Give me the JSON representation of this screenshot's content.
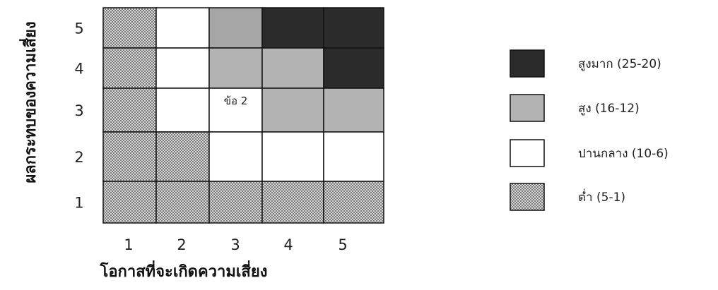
{
  "chart_data": {
    "type": "heatmap",
    "title": "",
    "xlabel": "โอกาสที่จะเกิดความเสี่ยง",
    "ylabel": "ผลกระทบของความเสี่ยง",
    "x": [
      1,
      2,
      3,
      4,
      5
    ],
    "y": [
      1,
      2,
      3,
      4,
      5
    ],
    "x_tick_labels": [
      "1",
      "2",
      "3",
      "4",
      "5"
    ],
    "y_tick_labels": [
      "1",
      "2",
      "3",
      "4",
      "5"
    ],
    "cells": [
      {
        "x": 1,
        "y": 5,
        "level": "low"
      },
      {
        "x": 2,
        "y": 5,
        "level": "medium"
      },
      {
        "x": 3,
        "y": 5,
        "level": "high"
      },
      {
        "x": 4,
        "y": 5,
        "level": "very_high"
      },
      {
        "x": 5,
        "y": 5,
        "level": "very_high"
      },
      {
        "x": 1,
        "y": 4,
        "level": "low"
      },
      {
        "x": 2,
        "y": 4,
        "level": "medium"
      },
      {
        "x": 3,
        "y": 4,
        "level": "high"
      },
      {
        "x": 4,
        "y": 4,
        "level": "high"
      },
      {
        "x": 5,
        "y": 4,
        "level": "very_high"
      },
      {
        "x": 1,
        "y": 3,
        "level": "low"
      },
      {
        "x": 2,
        "y": 3,
        "level": "medium"
      },
      {
        "x": 3,
        "y": 3,
        "level": "medium",
        "label": "ข้อ 2"
      },
      {
        "x": 4,
        "y": 3,
        "level": "high"
      },
      {
        "x": 5,
        "y": 3,
        "level": "high"
      },
      {
        "x": 1,
        "y": 2,
        "level": "low"
      },
      {
        "x": 2,
        "y": 2,
        "level": "low"
      },
      {
        "x": 3,
        "y": 2,
        "level": "medium"
      },
      {
        "x": 4,
        "y": 2,
        "level": "medium"
      },
      {
        "x": 5,
        "y": 2,
        "level": "medium"
      },
      {
        "x": 1,
        "y": 1,
        "level": "low"
      },
      {
        "x": 2,
        "y": 1,
        "level": "low"
      },
      {
        "x": 3,
        "y": 1,
        "level": "low"
      },
      {
        "x": 4,
        "y": 1,
        "level": "low"
      },
      {
        "x": 5,
        "y": 1,
        "level": "low"
      }
    ],
    "legend": [
      {
        "level": "very_high",
        "label": "สูงมาก (25-20)",
        "color": "#2b2b2b"
      },
      {
        "level": "high",
        "label": "สูง (16-12)",
        "color": "#b3b3b3"
      },
      {
        "level": "medium",
        "label": "ปานกลาง (10-6)",
        "color": "#ffffff"
      },
      {
        "level": "low",
        "label": "ต่ำ (5-1)",
        "color": "pattern"
      }
    ],
    "legend_position": "right",
    "grid": true
  },
  "colors": {
    "very_high": "#2b2b2b",
    "high_top": "#a6a6a6",
    "high": "#b3b3b3",
    "medium": "#ffffff",
    "low_pattern": "#8c8c8c",
    "border": "#111111"
  }
}
